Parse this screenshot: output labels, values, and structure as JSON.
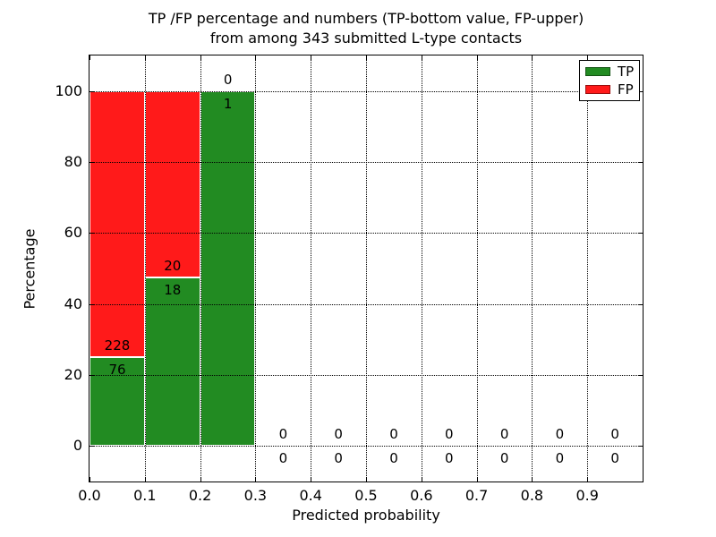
{
  "figure": {
    "title_line1": "TP /FP percentage and numbers (TP-bottom value, FP-upper)",
    "title_line2": "from among 343 submitted L-type contacts"
  },
  "chart_data": {
    "type": "bar",
    "stacked": true,
    "title": "TP /FP percentage and numbers (TP-bottom value, FP-upper) from among 343 submitted L-type contacts",
    "xlabel": "Predicted probability",
    "ylabel": "Percentage",
    "total_submitted": 343,
    "xlim": [
      0.0,
      1.0
    ],
    "ylim": [
      -10,
      110
    ],
    "grid": "dotted",
    "bin_width": 0.1,
    "x_ticks": [
      0.0,
      0.1,
      0.2,
      0.3,
      0.4,
      0.5,
      0.6,
      0.7,
      0.8,
      0.9
    ],
    "x_tick_labels": [
      "0.0",
      "0.1",
      "0.2",
      "0.3",
      "0.4",
      "0.5",
      "0.6",
      "0.7",
      "0.8",
      "0.9"
    ],
    "y_ticks": [
      0,
      20,
      40,
      60,
      80,
      100
    ],
    "y_tick_labels": [
      "0",
      "20",
      "40",
      "60",
      "80",
      "100"
    ],
    "categories": [
      "0.0-0.1",
      "0.1-0.2",
      "0.2-0.3",
      "0.3-0.4",
      "0.4-0.5",
      "0.5-0.6",
      "0.6-0.7",
      "0.7-0.8",
      "0.8-0.9",
      "0.9-1.0"
    ],
    "series": [
      {
        "name": "TP",
        "color": "#228b22",
        "counts": [
          76,
          18,
          1,
          0,
          0,
          0,
          0,
          0,
          0,
          0
        ]
      },
      {
        "name": "FP",
        "color": "#ff1a1a",
        "counts": [
          228,
          20,
          0,
          0,
          0,
          0,
          0,
          0,
          0,
          0
        ]
      }
    ],
    "percentages": {
      "tp": [
        25.0,
        47.4,
        100.0,
        0,
        0,
        0,
        0,
        0,
        0,
        0
      ],
      "fp": [
        75.0,
        52.6,
        0.0,
        0,
        0,
        0,
        0,
        0,
        0,
        0
      ]
    },
    "legend": {
      "position": "upper right",
      "entries": [
        {
          "label": "TP",
          "color": "#228b22"
        },
        {
          "label": "FP",
          "color": "#ff1a1a"
        }
      ]
    }
  }
}
